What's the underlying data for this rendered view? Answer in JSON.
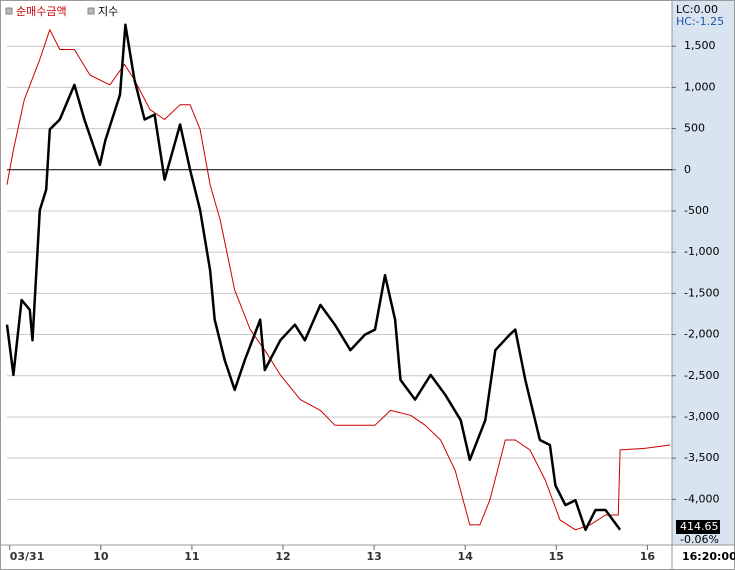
{
  "chart_data": {
    "type": "line",
    "legend": [
      "순매수금액",
      "지수"
    ],
    "lc_label": "LC:0.00",
    "hc_label": "HC:-1.25",
    "last_price_label": "414.65",
    "change_label": "-0.06%",
    "time_label": "16:20:00",
    "xlim": [
      8.97,
      16.27
    ],
    "xticks": [
      {
        "value": 9,
        "label": "03/31"
      },
      10,
      11,
      12,
      13,
      14,
      15,
      16
    ],
    "ylim": [
      -4530,
      2000
    ],
    "yticks": [
      {
        "value": 1500,
        "label": "1,500"
      },
      {
        "value": 1000,
        "label": "1,000"
      },
      500,
      0,
      -500,
      {
        "value": -1000,
        "label": "-1,000"
      },
      {
        "value": -1500,
        "label": "-1,500"
      },
      {
        "value": -2000,
        "label": "-2,000"
      },
      {
        "value": -2500,
        "label": "-2,500"
      },
      {
        "value": -3000,
        "label": "-3,000"
      },
      {
        "value": -3500,
        "label": "-3,500"
      },
      {
        "value": -4000,
        "label": "-4,000"
      }
    ],
    "grid": true,
    "series": [
      {
        "name": "순매수금액",
        "color": "#cc0000",
        "width": 1,
        "x": [
          8.97,
          9.04,
          9.16,
          9.33,
          9.44,
          9.55,
          9.71,
          9.88,
          10.1,
          10.26,
          10.37,
          10.54,
          10.7,
          10.87,
          10.98,
          11.09,
          11.2,
          11.31,
          11.47,
          11.64,
          11.8,
          11.97,
          12.19,
          12.41,
          12.57,
          12.79,
          13.01,
          13.18,
          13.4,
          13.56,
          13.73,
          13.89,
          14.05,
          14.16,
          14.27,
          14.44,
          14.55,
          14.71,
          14.88,
          15.04,
          15.21,
          15.37,
          15.54,
          15.68,
          15.7,
          15.98,
          16.25
        ],
        "values": [
          -180,
          240,
          850,
          1340,
          1700,
          1460,
          1460,
          1150,
          1030,
          1280,
          1090,
          730,
          610,
          790,
          790,
          490,
          -180,
          -610,
          -1460,
          -1940,
          -2190,
          -2490,
          -2790,
          -2920,
          -3100,
          -3100,
          -3100,
          -2920,
          -2980,
          -3100,
          -3280,
          -3650,
          -4310,
          -4310,
          -4010,
          -3280,
          -3280,
          -3400,
          -3770,
          -4250,
          -4370,
          -4310,
          -4190,
          -4190,
          -3400,
          -3380,
          -3340
        ]
      },
      {
        "name": "지수",
        "color": "#000000",
        "width": 2.5,
        "x": [
          8.97,
          9.04,
          9.13,
          9.22,
          9.25,
          9.33,
          9.4,
          9.44,
          9.55,
          9.71,
          9.82,
          9.99,
          10.05,
          10.21,
          10.27,
          10.37,
          10.48,
          10.59,
          10.7,
          10.87,
          10.98,
          11.09,
          11.2,
          11.25,
          11.36,
          11.47,
          11.58,
          11.75,
          11.8,
          11.97,
          12.13,
          12.24,
          12.41,
          12.57,
          12.74,
          12.9,
          13.01,
          13.12,
          13.23,
          13.29,
          13.45,
          13.62,
          13.78,
          13.95,
          14.05,
          14.22,
          14.33,
          14.49,
          14.55,
          14.66,
          14.82,
          14.93,
          14.99,
          15.1,
          15.21,
          15.32,
          15.43,
          15.54,
          15.7
        ],
        "values": [
          -1880,
          -2490,
          -1580,
          -1700,
          -2070,
          -490,
          -240,
          490,
          610,
          1030,
          610,
          60,
          360,
          910,
          1760,
          1090,
          610,
          670,
          -120,
          550,
          0,
          -490,
          -1220,
          -1820,
          -2310,
          -2670,
          -2310,
          -1820,
          -2430,
          -2070,
          -1880,
          -2070,
          -1640,
          -1880,
          -2190,
          -2000,
          -1940,
          -1280,
          -1820,
          -2550,
          -2790,
          -2490,
          -2730,
          -3040,
          -3520,
          -3040,
          -2190,
          -2000,
          -1940,
          -2550,
          -3280,
          -3340,
          -3830,
          -4070,
          -4010,
          -4370,
          -4130,
          -4130,
          -4370
        ]
      }
    ]
  }
}
